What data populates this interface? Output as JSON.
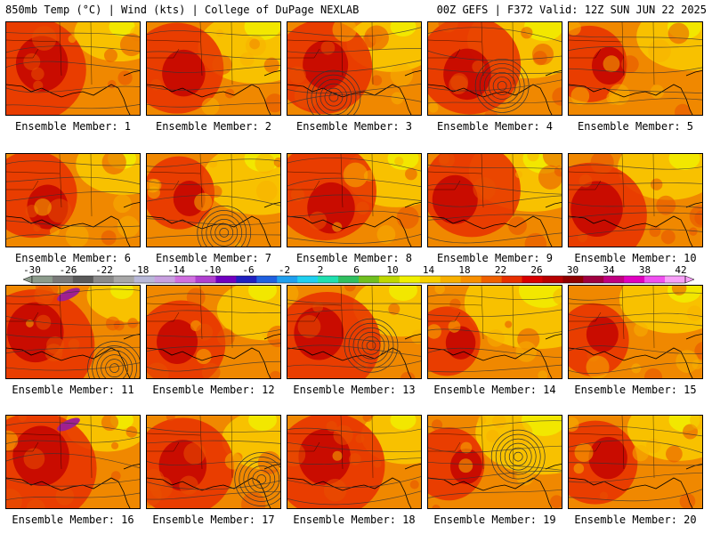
{
  "header": {
    "left": "850mb Temp (°C) | Wind (kts) | College of DuPage NEXLAB",
    "right": "00Z GEFS | F372 Valid: 12Z SUN JUN 22 2025"
  },
  "panels": [
    {
      "label": "Ensemble Member: 1",
      "hot": 0.85,
      "cool": 0.15,
      "low": false
    },
    {
      "label": "Ensemble Member: 2",
      "hot": 0.65,
      "cool": 0.35,
      "low": false
    },
    {
      "label": "Ensemble Member: 3",
      "hot": 0.7,
      "cool": 0.15,
      "low": true
    },
    {
      "label": "Ensemble Member: 4",
      "hot": 0.75,
      "cool": 0.4,
      "low": true
    },
    {
      "label": "Ensemble Member: 5",
      "hot": 0.45,
      "cool": 0.3,
      "low": false
    },
    {
      "label": "Ensemble Member: 6",
      "hot": 0.6,
      "cool": 0.2,
      "low": false
    },
    {
      "label": "Ensemble Member: 7",
      "hot": 0.4,
      "cool": 0.35,
      "low": true
    },
    {
      "label": "Ensemble Member: 8",
      "hot": 0.75,
      "cool": 0.25,
      "low": false
    },
    {
      "label": "Ensemble Member: 9",
      "hot": 0.7,
      "cool": 0.45,
      "low": false
    },
    {
      "label": "Ensemble Member: 10",
      "hot": 0.85,
      "cool": 0.25,
      "low": false
    },
    {
      "label": "Ensemble Member: 11",
      "hot": 0.95,
      "cool": 0.1,
      "low": true
    },
    {
      "label": "Ensemble Member: 12",
      "hot": 0.6,
      "cool": 0.2,
      "low": false
    },
    {
      "label": "Ensemble Member: 13",
      "hot": 0.8,
      "cool": 0.2,
      "low": true
    },
    {
      "label": "Ensemble Member: 14",
      "hot": 0.35,
      "cool": 0.6,
      "low": false
    },
    {
      "label": "Ensemble Member: 15",
      "hot": 0.4,
      "cool": 0.3,
      "low": false
    },
    {
      "label": "Ensemble Member: 16",
      "hot": 0.95,
      "cool": 0.1,
      "low": false
    },
    {
      "label": "Ensemble Member: 17",
      "hot": 0.75,
      "cool": 0.2,
      "low": true
    },
    {
      "label": "Ensemble Member: 18",
      "hot": 0.85,
      "cool": 0.15,
      "low": false
    },
    {
      "label": "Ensemble Member: 19",
      "hot": 0.4,
      "cool": 0.5,
      "low": true
    },
    {
      "label": "Ensemble Member: 20",
      "hot": 0.55,
      "cool": 0.25,
      "low": false
    }
  ],
  "colorbar": {
    "ticks": [
      "-30",
      "-26",
      "-22",
      "-18",
      "-14",
      "-10",
      "-6",
      "-2",
      "2",
      "6",
      "10",
      "14",
      "18",
      "22",
      "26",
      "30",
      "34",
      "38",
      "42"
    ],
    "colors": [
      "#8c9c8c",
      "#7a7a7a",
      "#5a5a5a",
      "#8a8a8a",
      "#a8a8a8",
      "#b8b8d8",
      "#c8a0e0",
      "#d070e0",
      "#b040d0",
      "#7000c0",
      "#2020c0",
      "#2060e0",
      "#20a0f0",
      "#20d0f0",
      "#20e0b0",
      "#30c060",
      "#70c020",
      "#c0d800",
      "#f0f000",
      "#f8d000",
      "#f8b000",
      "#f89000",
      "#f06000",
      "#e83000",
      "#d80000",
      "#b80000",
      "#900000",
      "#a00040",
      "#c00080",
      "#e000c0",
      "#f050f0",
      "#f8a0f8"
    ]
  }
}
